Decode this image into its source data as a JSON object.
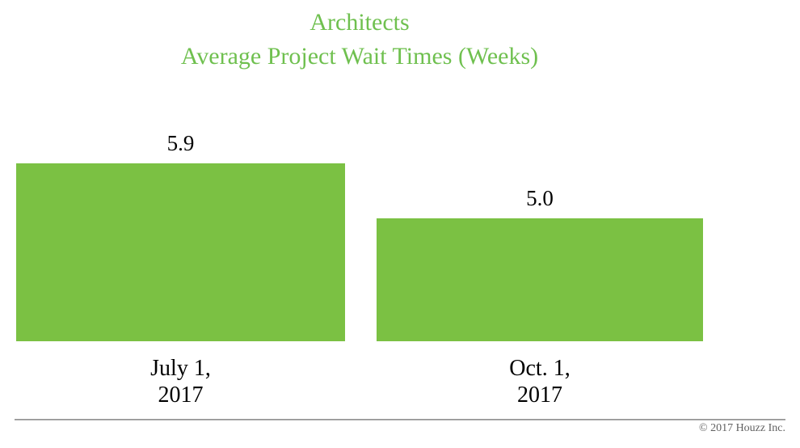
{
  "title": {
    "line1": "Architects",
    "line2": "Average Project Wait Times (Weeks)"
  },
  "footer": {
    "copyright": "© 2017 Houzz Inc."
  },
  "colors": {
    "bar_green": "#7bc143",
    "title_green": "#6fc04f",
    "value_label_black": "#000000",
    "footer_gray": "#616161"
  },
  "chart_data": {
    "type": "bar",
    "title": "Architects",
    "subtitle": "Average Project Wait Times (Weeks)",
    "categories": [
      "July 1, 2017",
      "Oct. 1, 2017"
    ],
    "values": [
      5.9,
      5.0
    ],
    "value_labels": [
      "5.9",
      "5.0"
    ],
    "x_tick_lines": [
      [
        "July 1,",
        "2017"
      ],
      [
        "Oct. 1,",
        "2017"
      ]
    ],
    "xlabel": "",
    "ylabel": "",
    "ylim": [
      3,
      6
    ],
    "grid": false,
    "legend": false,
    "axis_lines": false,
    "bar_color": "#7bc143"
  }
}
